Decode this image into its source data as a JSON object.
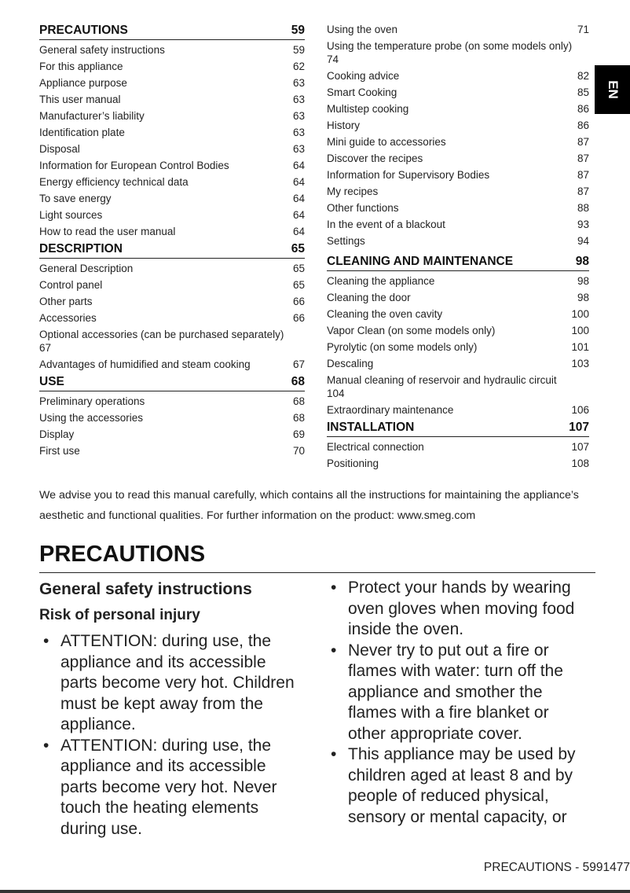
{
  "lang_tab": "EN",
  "toc_left": [
    {
      "title": "PRECAUTIONS",
      "page": "59",
      "items": [
        [
          "General safety instructions",
          "59"
        ],
        [
          "For this appliance",
          "62"
        ],
        [
          "Appliance purpose",
          "63"
        ],
        [
          "This user manual",
          "63"
        ],
        [
          "Manufacturer’s liability",
          "63"
        ],
        [
          "Identification plate",
          "63"
        ],
        [
          "Disposal",
          "63"
        ],
        [
          "Information for European Control Bodies",
          "64"
        ],
        [
          "Energy efficiency technical data",
          "64"
        ],
        [
          "To save energy",
          "64"
        ],
        [
          "Light sources",
          "64"
        ],
        [
          "How to read the user manual",
          "64"
        ]
      ]
    },
    {
      "title": "DESCRIPTION",
      "page": "65",
      "items": [
        [
          "General Description",
          "65"
        ],
        [
          "Control panel",
          "65"
        ],
        [
          "Other parts",
          "66"
        ],
        [
          "Accessories",
          "66"
        ],
        [
          "Optional accessories (can be purchased separately)",
          "67"
        ],
        [
          "Advantages of humidified and steam cooking",
          "67"
        ]
      ]
    },
    {
      "title": "USE",
      "page": "68",
      "items": [
        [
          "Preliminary operations",
          "68"
        ],
        [
          "Using the accessories",
          "68"
        ],
        [
          "Display",
          "69"
        ],
        [
          "First use",
          "70"
        ]
      ]
    }
  ],
  "toc_right_top": [
    [
      "Using the oven",
      "71"
    ],
    [
      "Using the temperature probe (on some models only)",
      "74"
    ],
    [
      "Cooking advice",
      "82"
    ],
    [
      "Smart Cooking",
      "85"
    ],
    [
      "Multistep cooking",
      "86"
    ],
    [
      "History",
      "86"
    ],
    [
      "Mini guide to accessories",
      "87"
    ],
    [
      "Discover the recipes",
      "87"
    ],
    [
      "Information for Supervisory Bodies",
      "87"
    ],
    [
      "My recipes",
      "87"
    ],
    [
      "Other functions",
      "88"
    ],
    [
      "In the event of a blackout",
      "93"
    ],
    [
      "Settings",
      "94"
    ]
  ],
  "toc_right": [
    {
      "title": "CLEANING AND MAINTENANCE",
      "page": "98",
      "items": [
        [
          "Cleaning the appliance",
          "98"
        ],
        [
          "Cleaning the door",
          "98"
        ],
        [
          "Cleaning the oven cavity",
          "100"
        ],
        [
          "Vapor Clean (on some models only)",
          "100"
        ],
        [
          "Pyrolytic (on some models only)",
          "101"
        ],
        [
          "Descaling",
          "103"
        ],
        [
          "Manual cleaning of reservoir and hydraulic circuit",
          "104"
        ],
        [
          "Extraordinary maintenance",
          "106"
        ]
      ]
    },
    {
      "title": "INSTALLATION",
      "page": "107",
      "items": [
        [
          "Electrical connection",
          "107"
        ],
        [
          "Positioning",
          "108"
        ]
      ]
    }
  ],
  "wrapped": [
    "Optional accessories (can be purchased separately)",
    "Using the temperature probe (on some models only)",
    "Manual cleaning of reservoir and hydraulic circuit"
  ],
  "intro": "We advise you to read this manual carefully, which contains all the instructions for maintaining the appliance’s aesthetic and functional qualities. For further information on the product: www.smeg.com",
  "section_title": "PRECAUTIONS",
  "subsection_title": "General safety instructions",
  "subsubsection_title": "Risk of personal injury",
  "bullets_left": [
    "ATTENTION: during use, the appliance and its accessible parts become very hot. Children must be kept away from the appliance.",
    "ATTENTION: during use, the appliance and its accessible parts become very hot. Never touch the heating elements during use."
  ],
  "bullets_right": [
    "Protect your hands by wearing oven gloves when moving food inside the oven.",
    "Never try to put out a fire or flames with water: turn off the appliance and smother the flames with a fire blanket or other appropriate cover.",
    "This appliance may be used by children aged at least 8 and by people of reduced physical, sensory or mental capacity, or"
  ],
  "footer": "PRECAUTIONS  -  5991477"
}
